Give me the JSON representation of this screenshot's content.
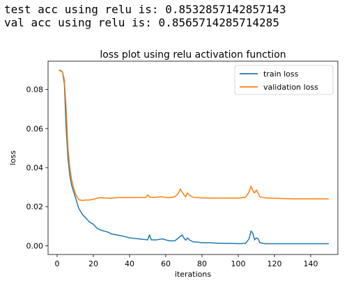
{
  "output": {
    "lines": [
      "test acc using relu is: 0.8532857142857143",
      "val acc using relu is: 0.8565714285714285"
    ]
  },
  "chart_data": {
    "type": "line",
    "title": "loss plot using relu activation function",
    "xlabel": "iterations",
    "ylabel": "loss",
    "xlim": [
      -5,
      155
    ],
    "ylim": [
      -0.0045,
      0.0945
    ],
    "xticks": [
      0,
      20,
      40,
      60,
      80,
      100,
      120,
      140
    ],
    "yticks": [
      0.0,
      0.02,
      0.04,
      0.06,
      0.08
    ],
    "ytick_labels": [
      "0.00",
      "0.02",
      "0.04",
      "0.06",
      "0.08"
    ],
    "grid": false,
    "legend_position": "upper right",
    "series": [
      {
        "name": "train loss",
        "color": "#1f77b4",
        "points": [
          [
            1,
            0.09
          ],
          [
            2,
            0.0895
          ],
          [
            3,
            0.089
          ],
          [
            4,
            0.083
          ],
          [
            5,
            0.06
          ],
          [
            6,
            0.045
          ],
          [
            7,
            0.036
          ],
          [
            8,
            0.031
          ],
          [
            9,
            0.028
          ],
          [
            10,
            0.025
          ],
          [
            11,
            0.022
          ],
          [
            12,
            0.019
          ],
          [
            14,
            0.016
          ],
          [
            16,
            0.014
          ],
          [
            18,
            0.012
          ],
          [
            20,
            0.011
          ],
          [
            22,
            0.009
          ],
          [
            24,
            0.008
          ],
          [
            26,
            0.0075
          ],
          [
            28,
            0.007
          ],
          [
            30,
            0.006
          ],
          [
            33,
            0.0055
          ],
          [
            36,
            0.005
          ],
          [
            40,
            0.004
          ],
          [
            45,
            0.0035
          ],
          [
            50,
            0.003
          ],
          [
            51,
            0.0055
          ],
          [
            52,
            0.003
          ],
          [
            55,
            0.003
          ],
          [
            58,
            0.0035
          ],
          [
            60,
            0.003
          ],
          [
            62,
            0.0025
          ],
          [
            65,
            0.0025
          ],
          [
            67,
            0.004
          ],
          [
            69,
            0.0055
          ],
          [
            70,
            0.004
          ],
          [
            71,
            0.0028
          ],
          [
            72,
            0.004
          ],
          [
            73,
            0.003
          ],
          [
            75,
            0.002
          ],
          [
            78,
            0.0018
          ],
          [
            80,
            0.0015
          ],
          [
            85,
            0.0015
          ],
          [
            90,
            0.0012
          ],
          [
            95,
            0.0012
          ],
          [
            100,
            0.001
          ],
          [
            104,
            0.0012
          ],
          [
            106,
            0.0035
          ],
          [
            107,
            0.0075
          ],
          [
            108,
            0.0065
          ],
          [
            109,
            0.003
          ],
          [
            110,
            0.004
          ],
          [
            111,
            0.0035
          ],
          [
            112,
            0.0015
          ],
          [
            115,
            0.001
          ],
          [
            120,
            0.001
          ],
          [
            130,
            0.001
          ],
          [
            140,
            0.001
          ],
          [
            150,
            0.001
          ]
        ]
      },
      {
        "name": "validation loss",
        "color": "#ff7f0e",
        "points": [
          [
            1,
            0.09
          ],
          [
            2,
            0.0898
          ],
          [
            3,
            0.089
          ],
          [
            4,
            0.085
          ],
          [
            5,
            0.07
          ],
          [
            6,
            0.05
          ],
          [
            7,
            0.04
          ],
          [
            8,
            0.034
          ],
          [
            9,
            0.03
          ],
          [
            10,
            0.027
          ],
          [
            11,
            0.025
          ],
          [
            12,
            0.0235
          ],
          [
            14,
            0.0232
          ],
          [
            16,
            0.0234
          ],
          [
            18,
            0.0234
          ],
          [
            20,
            0.0238
          ],
          [
            22,
            0.0243
          ],
          [
            24,
            0.0246
          ],
          [
            26,
            0.0245
          ],
          [
            28,
            0.0243
          ],
          [
            30,
            0.0243
          ],
          [
            33,
            0.0246
          ],
          [
            36,
            0.0247
          ],
          [
            40,
            0.0246
          ],
          [
            45,
            0.0247
          ],
          [
            49,
            0.0247
          ],
          [
            50,
            0.026
          ],
          [
            51,
            0.025
          ],
          [
            53,
            0.0247
          ],
          [
            55,
            0.0249
          ],
          [
            58,
            0.025
          ],
          [
            60,
            0.0247
          ],
          [
            62,
            0.0246
          ],
          [
            65,
            0.025
          ],
          [
            67,
            0.027
          ],
          [
            68,
            0.029
          ],
          [
            69,
            0.0275
          ],
          [
            70,
            0.0262
          ],
          [
            71,
            0.025
          ],
          [
            72,
            0.027
          ],
          [
            73,
            0.026
          ],
          [
            75,
            0.0248
          ],
          [
            78,
            0.0246
          ],
          [
            80,
            0.0245
          ],
          [
            85,
            0.0244
          ],
          [
            90,
            0.0244
          ],
          [
            95,
            0.0244
          ],
          [
            100,
            0.0244
          ],
          [
            104,
            0.0248
          ],
          [
            106,
            0.0275
          ],
          [
            107,
            0.0305
          ],
          [
            108,
            0.0283
          ],
          [
            109,
            0.027
          ],
          [
            110,
            0.0285
          ],
          [
            111,
            0.027
          ],
          [
            112,
            0.025
          ],
          [
            115,
            0.0245
          ],
          [
            120,
            0.0243
          ],
          [
            130,
            0.024
          ],
          [
            140,
            0.024
          ],
          [
            150,
            0.024
          ]
        ]
      }
    ]
  }
}
